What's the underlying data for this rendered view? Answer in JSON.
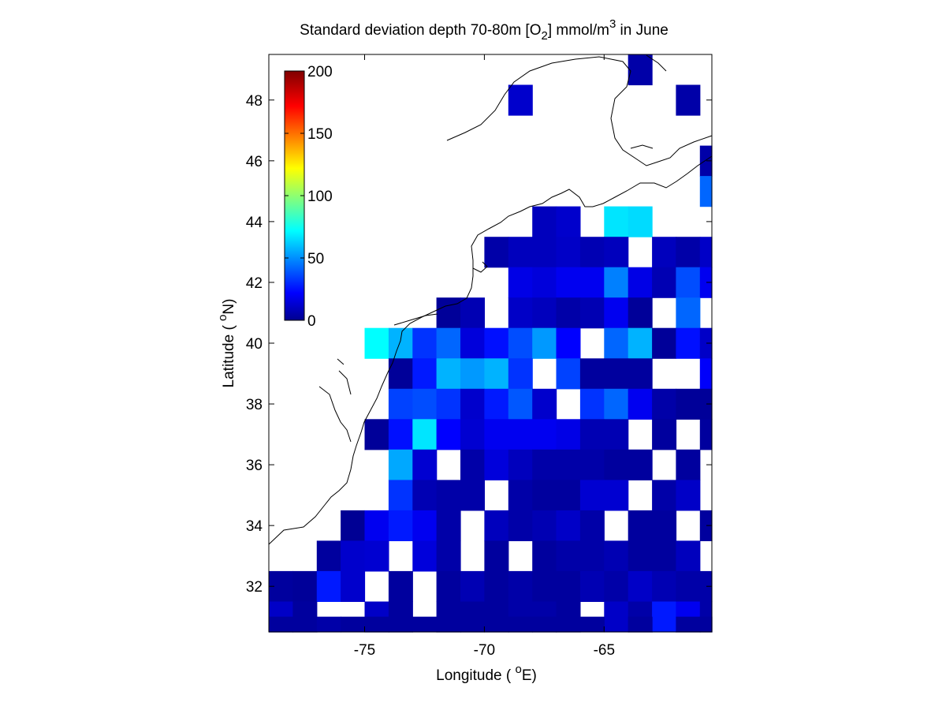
{
  "chart_data": {
    "type": "heatmap",
    "title": {
      "prefix": "Standard deviation depth 70-80m [O",
      "sub": "2",
      "middle": "] mmol/m",
      "sup": "3",
      "suffix": " in June"
    },
    "xlabel": {
      "prefix": "Longitude ( ",
      "sup": "o",
      "suffix": "E)"
    },
    "ylabel": {
      "prefix": "Latitude ( ",
      "sup": "o",
      "suffix": "N)"
    },
    "xlim": [
      -79,
      -60.5
    ],
    "ylim": [
      30.5,
      49.5
    ],
    "x_ticks": [
      -75,
      -70,
      -65
    ],
    "x_tick_labels": [
      "-75",
      "-70",
      "-65"
    ],
    "y_ticks": [
      32,
      34,
      36,
      38,
      40,
      42,
      44,
      46,
      48
    ],
    "y_tick_labels": [
      "32",
      "34",
      "36",
      "38",
      "40",
      "42",
      "44",
      "46",
      "48"
    ],
    "colorbar": {
      "colormap": "jet",
      "range": [
        0,
        200
      ],
      "ticks": [
        0,
        50,
        100,
        150,
        200
      ],
      "tick_labels": [
        "0",
        "50",
        "100",
        "150",
        "200"
      ]
    },
    "cell_size_deg": 1,
    "x_cell_edges_start": -79,
    "y_cell_edges_start": 30.5,
    "grid_rows_north_to_south": [
      {
        "lat": 49,
        "values": [
          null,
          null,
          null,
          null,
          null,
          null,
          null,
          null,
          null,
          null,
          null,
          null,
          null,
          null,
          null,
          8,
          null,
          null,
          null
        ]
      },
      {
        "lat": 48,
        "values": [
          null,
          null,
          null,
          null,
          null,
          null,
          null,
          null,
          null,
          null,
          15,
          null,
          null,
          null,
          null,
          null,
          null,
          8,
          null
        ]
      },
      {
        "lat": 47,
        "values": [
          null,
          null,
          null,
          null,
          null,
          null,
          null,
          null,
          null,
          null,
          null,
          null,
          null,
          null,
          null,
          null,
          null,
          null,
          null
        ]
      },
      {
        "lat": 46,
        "values": [
          null,
          null,
          null,
          null,
          null,
          null,
          null,
          null,
          null,
          null,
          null,
          null,
          null,
          null,
          null,
          null,
          null,
          null,
          8
        ]
      },
      {
        "lat": 45,
        "values": [
          null,
          null,
          null,
          null,
          null,
          null,
          null,
          null,
          null,
          null,
          null,
          null,
          null,
          null,
          null,
          null,
          null,
          null,
          45
        ]
      },
      {
        "lat": 44,
        "values": [
          null,
          null,
          null,
          null,
          null,
          null,
          null,
          null,
          null,
          null,
          null,
          12,
          15,
          null,
          70,
          68,
          null,
          null,
          null
        ]
      },
      {
        "lat": 43,
        "values": [
          null,
          null,
          null,
          null,
          null,
          null,
          null,
          null,
          null,
          8,
          12,
          12,
          14,
          10,
          12,
          null,
          12,
          8,
          14
        ]
      },
      {
        "lat": 42,
        "values": [
          null,
          null,
          null,
          null,
          null,
          null,
          null,
          null,
          null,
          null,
          20,
          18,
          22,
          22,
          50,
          20,
          10,
          40,
          22
        ]
      },
      {
        "lat": 41,
        "values": [
          null,
          null,
          null,
          null,
          null,
          null,
          null,
          5,
          10,
          null,
          14,
          12,
          8,
          10,
          22,
          5,
          null,
          45,
          null
        ]
      },
      {
        "lat": 40,
        "values": [
          null,
          null,
          null,
          null,
          75,
          60,
          35,
          45,
          18,
          28,
          40,
          55,
          25,
          null,
          45,
          60,
          5,
          28,
          14
        ]
      },
      {
        "lat": 39,
        "values": [
          null,
          null,
          null,
          null,
          null,
          5,
          30,
          60,
          55,
          60,
          35,
          null,
          38,
          6,
          6,
          6,
          null,
          null,
          24
        ]
      },
      {
        "lat": 38,
        "values": [
          null,
          null,
          null,
          null,
          null,
          38,
          40,
          35,
          15,
          30,
          42,
          15,
          null,
          35,
          45,
          22,
          8,
          5,
          5
        ]
      },
      {
        "lat": 37,
        "values": [
          null,
          null,
          null,
          null,
          5,
          28,
          70,
          25,
          16,
          22,
          22,
          22,
          20,
          10,
          10,
          null,
          6,
          null,
          6
        ]
      },
      {
        "lat": 36,
        "values": [
          null,
          null,
          null,
          null,
          null,
          58,
          16,
          null,
          8,
          18,
          12,
          8,
          8,
          8,
          6,
          6,
          null,
          6,
          null
        ]
      },
      {
        "lat": 35,
        "values": [
          null,
          null,
          null,
          null,
          null,
          35,
          10,
          8,
          8,
          null,
          8,
          6,
          6,
          16,
          16,
          null,
          8,
          14,
          null
        ]
      },
      {
        "lat": 34,
        "values": [
          null,
          null,
          null,
          4,
          22,
          30,
          22,
          8,
          null,
          12,
          8,
          10,
          14,
          8,
          null,
          6,
          6,
          null,
          6
        ]
      },
      {
        "lat": 33,
        "values": [
          null,
          null,
          6,
          15,
          16,
          null,
          18,
          8,
          null,
          6,
          null,
          6,
          8,
          8,
          10,
          6,
          6,
          12,
          null
        ]
      },
      {
        "lat": 32,
        "values": [
          6,
          5,
          30,
          15,
          null,
          6,
          null,
          6,
          10,
          6,
          8,
          6,
          6,
          10,
          8,
          14,
          10,
          8,
          8
        ]
      },
      {
        "lat": 31,
        "values": [
          14,
          6,
          null,
          null,
          14,
          6,
          null,
          6,
          6,
          6,
          8,
          8,
          6,
          null,
          14,
          8,
          30,
          22,
          8
        ]
      },
      {
        "lat": 30.5,
        "values": [
          6,
          6,
          8,
          6,
          6,
          6,
          6,
          6,
          6,
          6,
          6,
          6,
          6,
          6,
          null,
          6,
          null,
          6,
          6
        ]
      }
    ]
  }
}
